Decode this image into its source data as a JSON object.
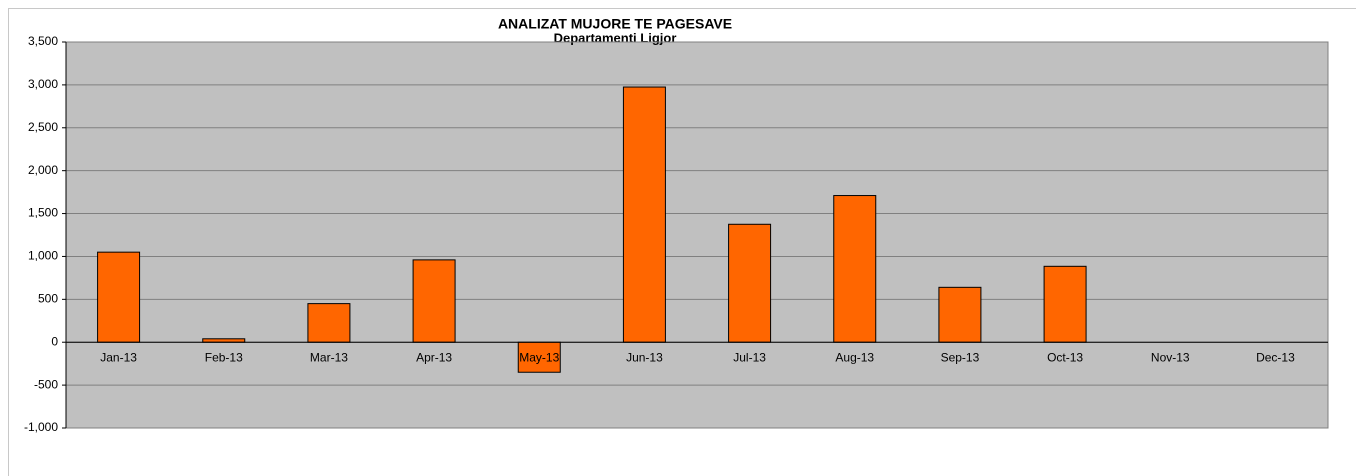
{
  "chart_data": {
    "type": "bar",
    "title": "ANALIZAT MUJORE TE PAGESAVE",
    "subtitle": "Departamenti Ligjor",
    "categories": [
      "Jan-13",
      "Feb-13",
      "Mar-13",
      "Apr-13",
      "May-13",
      "Jun-13",
      "Jul-13",
      "Aug-13",
      "Sep-13",
      "Oct-13",
      "Nov-13",
      "Dec-13"
    ],
    "values": [
      1050,
      40,
      450,
      960,
      -350,
      2975,
      1375,
      1710,
      640,
      885,
      null,
      null
    ],
    "color": "#ff6600",
    "ylim": [
      -1000,
      3500
    ],
    "yticks": [
      {
        "value": -1000,
        "label": "-1,000"
      },
      -500,
      0,
      500,
      {
        "value": 1000,
        "label": "1,000"
      },
      {
        "value": 1500,
        "label": "1,500"
      },
      {
        "value": 2000,
        "label": "2,000"
      },
      {
        "value": 2500,
        "label": "2,500"
      },
      {
        "value": 3000,
        "label": "3,000"
      },
      {
        "value": 3500,
        "label": "3,500"
      }
    ],
    "grid": true
  }
}
